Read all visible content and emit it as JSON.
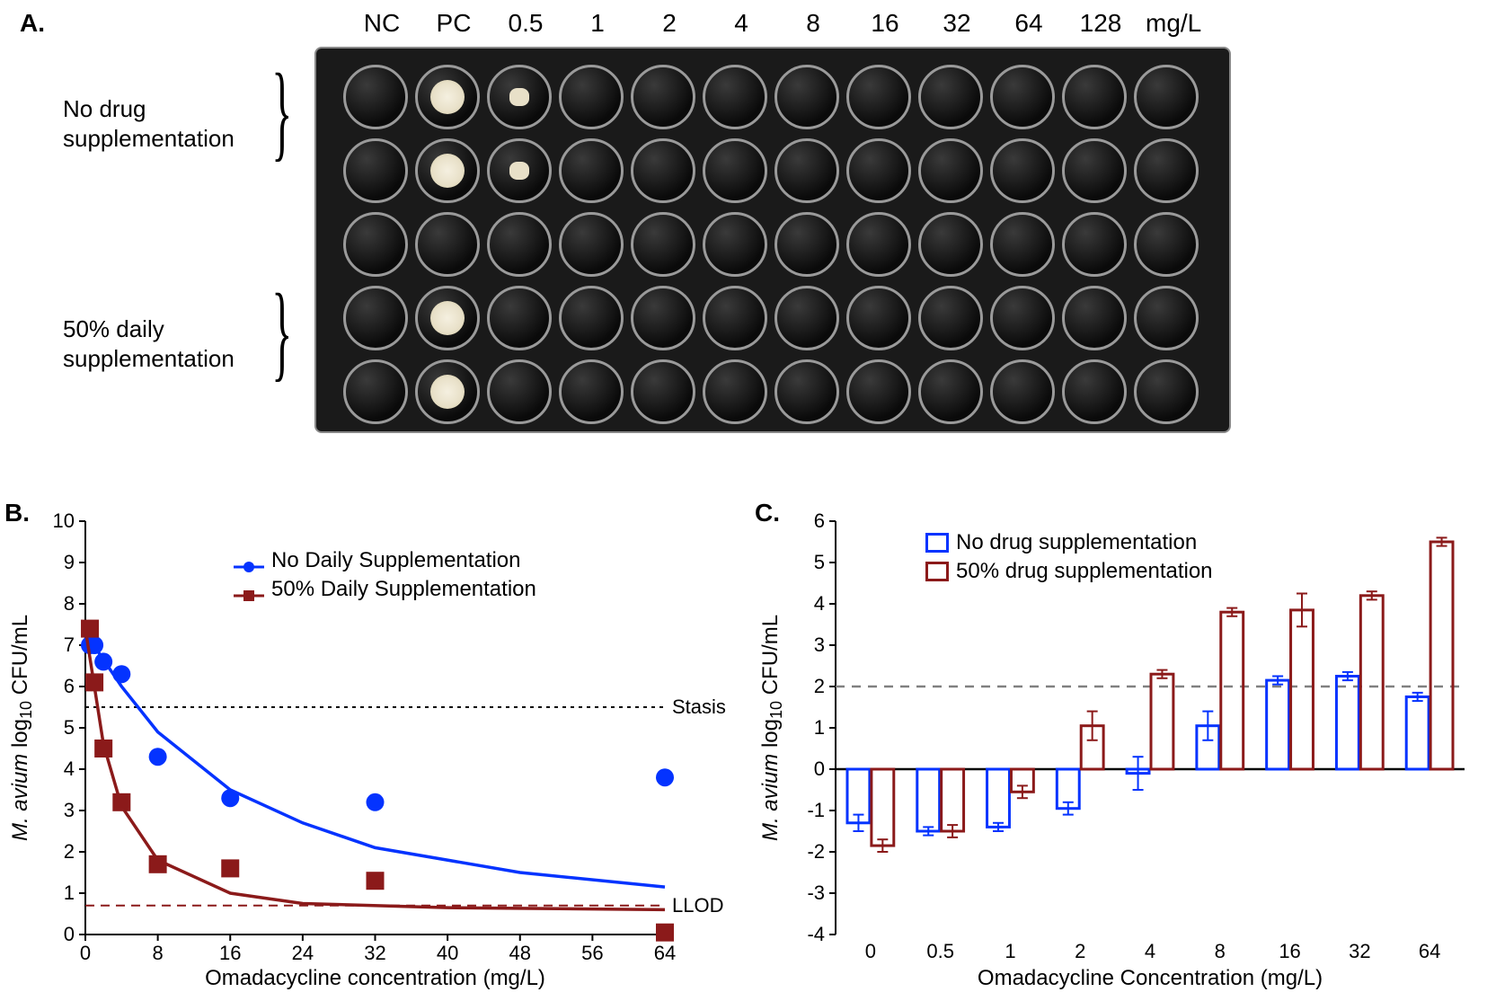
{
  "panelA": {
    "label": "A.",
    "col_headers": [
      "NC",
      "PC",
      "0.5",
      "1",
      "2",
      "4",
      "8",
      "16",
      "32",
      "64",
      "128",
      "mg/L"
    ],
    "row_group_labels": {
      "top": "No drug\nsupplementation",
      "bottom": "50% daily\nsupplementation"
    },
    "plate": {
      "bg": "#1a1a1a",
      "well_border": "#9a9a9a",
      "rows": [
        {
          "cells": [
            "dark",
            "growth",
            "partial",
            "dark",
            "dark",
            "dark",
            "dark",
            "dark",
            "dark",
            "dark",
            "dark",
            "dark"
          ]
        },
        {
          "cells": [
            "dark",
            "growth",
            "partial",
            "dark",
            "dark",
            "dark",
            "dark",
            "dark",
            "dark",
            "dark",
            "dark",
            "dark"
          ]
        },
        {
          "cells": [
            "dark",
            "dark",
            "dark",
            "dark",
            "dark",
            "dark",
            "dark",
            "dark",
            "dark",
            "dark",
            "dark",
            "dark"
          ]
        },
        {
          "cells": [
            "dark",
            "growth",
            "dark",
            "dark",
            "dark",
            "dark",
            "dark",
            "dark",
            "dark",
            "dark",
            "dark",
            "dark"
          ]
        },
        {
          "cells": [
            "dark",
            "growth",
            "dark",
            "dark",
            "dark",
            "dark",
            "dark",
            "dark",
            "dark",
            "dark",
            "dark",
            "dark"
          ]
        }
      ]
    }
  },
  "panelB": {
    "label": "B.",
    "type": "scatter-line",
    "xlabel": "Omadacycline concentration (mg/L)",
    "ylabel_html": "<tspan font-style='italic'>M. avium</tspan> log<tspan baseline-shift='-5' font-size='18'>10</tspan> CFU/mL",
    "xlim": [
      0,
      64
    ],
    "ylim": [
      0,
      10
    ],
    "xticks": [
      0,
      8,
      16,
      24,
      32,
      40,
      48,
      56,
      64
    ],
    "yticks": [
      0,
      1,
      2,
      3,
      4,
      5,
      6,
      7,
      8,
      9,
      10
    ],
    "stasis_y": 5.5,
    "stasis_label": "Stasis",
    "llod_y": 0.7,
    "llod_label": "LLOD",
    "axis_fontsize": 24,
    "tick_fontsize": 22,
    "colors": {
      "blue": "#0433ff",
      "red": "#8b1a1a"
    },
    "series": [
      {
        "name": "No Daily Supplementation",
        "color": "#0433ff",
        "marker": "circle",
        "marker_size": 10,
        "points": [
          {
            "x": 0.5,
            "y": 7.0
          },
          {
            "x": 1,
            "y": 7.0
          },
          {
            "x": 2,
            "y": 6.6
          },
          {
            "x": 4,
            "y": 6.3
          },
          {
            "x": 8,
            "y": 4.3
          },
          {
            "x": 16,
            "y": 3.3
          },
          {
            "x": 32,
            "y": 3.2
          },
          {
            "x": 64,
            "y": 3.8
          }
        ],
        "curve": [
          {
            "x": 0,
            "y": 7.3
          },
          {
            "x": 4,
            "y": 6.0
          },
          {
            "x": 8,
            "y": 4.9
          },
          {
            "x": 16,
            "y": 3.5
          },
          {
            "x": 24,
            "y": 2.7
          },
          {
            "x": 32,
            "y": 2.1
          },
          {
            "x": 48,
            "y": 1.5
          },
          {
            "x": 64,
            "y": 1.15
          }
        ]
      },
      {
        "name": "50% Daily Supplementation",
        "color": "#8b1a1a",
        "marker": "square",
        "marker_size": 10,
        "points": [
          {
            "x": 0.5,
            "y": 7.4
          },
          {
            "x": 1,
            "y": 6.1
          },
          {
            "x": 2,
            "y": 4.5
          },
          {
            "x": 4,
            "y": 3.2
          },
          {
            "x": 8,
            "y": 1.7
          },
          {
            "x": 16,
            "y": 1.6
          },
          {
            "x": 32,
            "y": 1.3
          },
          {
            "x": 64,
            "y": 0.05
          }
        ],
        "curve": [
          {
            "x": 0,
            "y": 7.4
          },
          {
            "x": 2,
            "y": 4.6
          },
          {
            "x": 4,
            "y": 3.1
          },
          {
            "x": 8,
            "y": 1.8
          },
          {
            "x": 16,
            "y": 1.0
          },
          {
            "x": 24,
            "y": 0.75
          },
          {
            "x": 40,
            "y": 0.65
          },
          {
            "x": 64,
            "y": 0.6
          }
        ]
      }
    ]
  },
  "panelC": {
    "label": "C.",
    "type": "bar",
    "xlabel": "Omadacycline Concentration (mg/L)",
    "ylabel_html": "<tspan font-style='italic'>M. avium</tspan> log<tspan baseline-shift='-5' font-size='18'>10</tspan> CFU/mL",
    "ylim": [
      -4,
      6
    ],
    "yticks": [
      -4,
      -3,
      -2,
      -1,
      0,
      1,
      2,
      3,
      4,
      5,
      6
    ],
    "categories": [
      "0",
      "0.5",
      "1",
      "2",
      "4",
      "8",
      "16",
      "32",
      "64"
    ],
    "dashline_y": 2,
    "dashline_color": "#808080",
    "axis_fontsize": 24,
    "tick_fontsize": 22,
    "series": [
      {
        "name": "No drug supplementation",
        "color": "#0433ff",
        "values": [
          -1.3,
          -1.5,
          -1.4,
          -0.95,
          -0.1,
          1.05,
          2.15,
          2.25,
          1.75
        ],
        "err": [
          0.2,
          0.1,
          0.1,
          0.15,
          0.4,
          0.35,
          0.1,
          0.1,
          0.1
        ]
      },
      {
        "name": "50% drug supplementation",
        "color": "#8b1a1a",
        "values": [
          -1.85,
          -1.5,
          -0.55,
          1.05,
          2.3,
          3.8,
          3.85,
          4.2,
          5.5
        ],
        "err": [
          0.15,
          0.15,
          0.15,
          0.35,
          0.1,
          0.1,
          0.4,
          0.1,
          0.1
        ]
      }
    ]
  }
}
